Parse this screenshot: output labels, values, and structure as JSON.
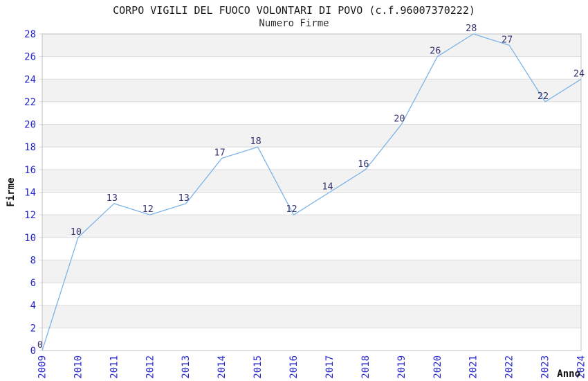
{
  "header": {
    "title": "CORPO VIGILI DEL FUOCO VOLONTARI DI POVO (c.f.96007370222)",
    "subtitle": "Numero Firme"
  },
  "chart_data": {
    "type": "line",
    "title": "CORPO VIGILI DEL FUOCO VOLONTARI DI POVO (c.f.96007370222)",
    "subtitle": "Numero Firme",
    "xlabel": "Anno",
    "ylabel": "Firme",
    "x": [
      "2009",
      "2010",
      "2011",
      "2012",
      "2013",
      "2014",
      "2015",
      "2016",
      "2017",
      "2018",
      "2019",
      "2020",
      "2021",
      "2022",
      "2023",
      "2024"
    ],
    "values": [
      0,
      10,
      13,
      12,
      13,
      17,
      18,
      12,
      14,
      16,
      20,
      26,
      28,
      27,
      22,
      24
    ],
    "ylim": [
      0,
      28
    ],
    "ytick_step": 2,
    "grid": "horizontal-only",
    "banding": "alternating horizontal stripes every 2 units",
    "legend": "none",
    "point_labels_visible": true,
    "colors": {
      "line": "#7db3e8",
      "tick_labels": "#2424cc",
      "point_labels": "#333370",
      "band": "#f2f2f2",
      "grid": "#dcdcdc",
      "border": "#c0c0c0",
      "title": "#1a1a1a",
      "axis_labels": "#111111",
      "background": "#ffffff"
    }
  }
}
